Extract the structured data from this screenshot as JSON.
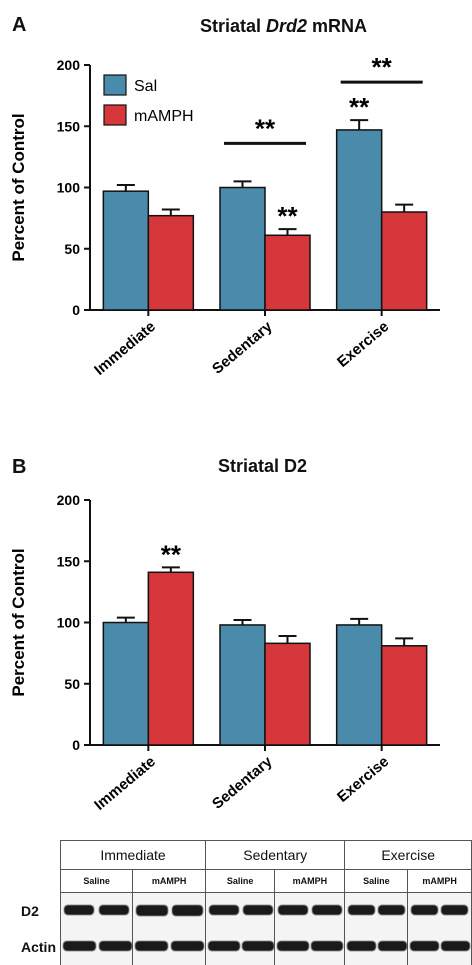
{
  "panelA": {
    "label": "A",
    "title_prefix": "Striatal ",
    "title_italic": "Drd2",
    "title_suffix": " mRNA"
  },
  "panelB": {
    "label": "B",
    "title": "Striatal D2"
  },
  "chart_data": [
    {
      "type": "bar",
      "title": "Striatal Drd2 mRNA",
      "xlabel": "",
      "ylabel": "Percent of Control",
      "ylim": [
        0,
        200
      ],
      "yticks": [
        0,
        50,
        100,
        150,
        200
      ],
      "categories": [
        "Immediate",
        "Sedentary",
        "Exercise"
      ],
      "series": [
        {
          "name": "Sal",
          "color": "#4a8aab",
          "values": [
            97,
            100,
            147
          ],
          "errors": [
            5,
            5,
            8
          ]
        },
        {
          "name": "mAMPH",
          "color": "#d6373a",
          "values": [
            77,
            61,
            80
          ],
          "errors": [
            5,
            5,
            6
          ]
        }
      ],
      "legend": "top-left",
      "annotations": [
        {
          "text": "**",
          "category": "Sedentary",
          "series": "mAMPH"
        },
        {
          "text": "**",
          "category": "Exercise",
          "series": "Sal"
        },
        {
          "text": "**",
          "category": "Sedentary",
          "series": "bracket"
        },
        {
          "text": "**",
          "category": "Exercise",
          "series": "bracket"
        }
      ]
    },
    {
      "type": "bar",
      "title": "Striatal D2",
      "xlabel": "",
      "ylabel": "Percent of Control",
      "ylim": [
        0,
        200
      ],
      "yticks": [
        0,
        50,
        100,
        150,
        200
      ],
      "categories": [
        "Immediate",
        "Sedentary",
        "Exercise"
      ],
      "series": [
        {
          "name": "Sal",
          "color": "#4a8aab",
          "values": [
            100,
            98,
            98
          ],
          "errors": [
            4,
            4,
            5
          ]
        },
        {
          "name": "mAMPH",
          "color": "#d6373a",
          "values": [
            141,
            83,
            81
          ],
          "errors": [
            4,
            6,
            6
          ]
        }
      ],
      "annotations": [
        {
          "text": "**",
          "category": "Immediate",
          "series": "mAMPH"
        }
      ]
    }
  ],
  "blot": {
    "conditions": [
      "Immediate",
      "Sedentary",
      "Exercise"
    ],
    "subheaders": [
      "Saline",
      "mAMPH",
      "Saline",
      "mAMPH",
      "Saline",
      "mAMPH"
    ],
    "rows": [
      "D2",
      "Actin"
    ]
  }
}
